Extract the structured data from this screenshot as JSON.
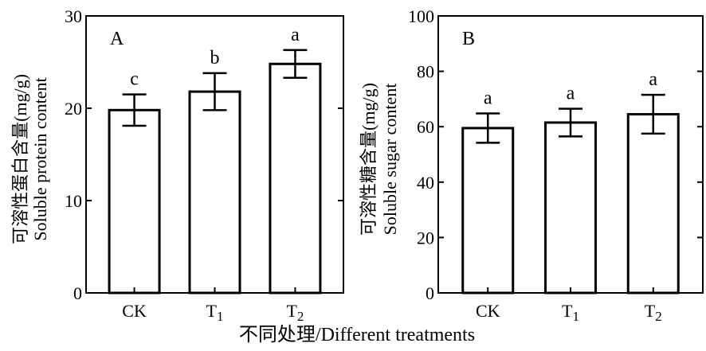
{
  "x_axis_title": "不同处理/Different treatments",
  "chart_data": [
    {
      "type": "bar",
      "panel": "A",
      "categories": [
        "CK",
        "T1",
        "T2"
      ],
      "category_labels": [
        {
          "main": "CK",
          "sub": ""
        },
        {
          "main": "T",
          "sub": "1"
        },
        {
          "main": "T",
          "sub": "2"
        }
      ],
      "values": [
        19.8,
        21.8,
        24.8
      ],
      "errors": [
        1.7,
        2.0,
        1.5
      ],
      "significance": [
        "c",
        "b",
        "a"
      ],
      "ylabel_cn": "可溶性蛋白含量(mg/g)",
      "ylabel_en": "Soluble protein content",
      "ylim": [
        0,
        30
      ],
      "yticks": [
        0,
        10,
        20,
        30
      ],
      "bar_fill": "#ffffff",
      "bar_stroke": "#000000"
    },
    {
      "type": "bar",
      "panel": "B",
      "categories": [
        "CK",
        "T1",
        "T2"
      ],
      "category_labels": [
        {
          "main": "CK",
          "sub": ""
        },
        {
          "main": "T",
          "sub": "1"
        },
        {
          "main": "T",
          "sub": "2"
        }
      ],
      "values": [
        59.5,
        61.5,
        64.5
      ],
      "errors": [
        5.3,
        5.0,
        7.0
      ],
      "significance": [
        "a",
        "a",
        "a"
      ],
      "ylabel_cn": "可溶性糖含量(mg/g)",
      "ylabel_en": "Soluble sugar content",
      "ylim": [
        0,
        100
      ],
      "yticks": [
        0,
        20,
        40,
        60,
        80,
        100
      ],
      "bar_fill": "#ffffff",
      "bar_stroke": "#000000"
    }
  ]
}
